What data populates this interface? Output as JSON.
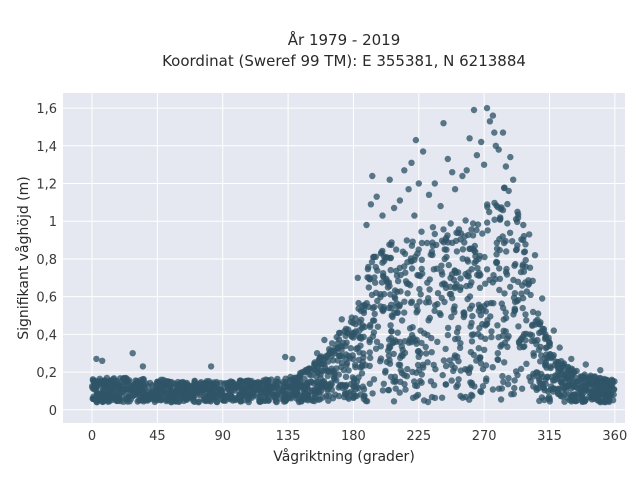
{
  "chart_data": {
    "type": "scatter",
    "title_line1": "År 1979 - 2019",
    "title_line2": "Koordinat (Sweref 99 TM): E 355381, N 6213884",
    "xlabel": "Vågriktning (grader)",
    "ylabel": "Signifikant våghöjd (m)",
    "xlim": [
      -20,
      367
    ],
    "ylim": [
      -0.07,
      1.68
    ],
    "x_ticks": [
      0,
      45,
      90,
      135,
      180,
      225,
      270,
      315,
      360
    ],
    "x_tick_labels": [
      "0",
      "45",
      "90",
      "135",
      "180",
      "225",
      "270",
      "315",
      "360"
    ],
    "y_ticks": [
      0,
      0.2,
      0.4,
      0.6,
      0.8,
      1.0,
      1.2,
      1.4,
      1.6
    ],
    "y_tick_labels": [
      "0",
      "0,2",
      "0,4",
      "0,6",
      "0,8",
      "1",
      "1,2",
      "1,4",
      "1,6"
    ],
    "grid": true,
    "marker_color": "#2f5468",
    "plot_background": "#e5e8f0",
    "envelope_x": [
      0,
      20,
      45,
      90,
      135,
      150,
      160,
      170,
      180,
      185,
      190,
      195,
      200,
      210,
      220,
      225,
      240,
      255,
      260,
      270,
      275,
      280,
      290,
      295,
      300,
      305,
      310,
      315,
      320,
      330,
      340,
      350,
      360
    ],
    "envelope_y": [
      0.17,
      0.17,
      0.16,
      0.15,
      0.17,
      0.23,
      0.3,
      0.42,
      0.5,
      0.6,
      0.78,
      0.85,
      0.88,
      0.9,
      0.92,
      0.95,
      0.98,
      1.0,
      1.02,
      1.1,
      1.15,
      1.2,
      1.15,
      1.02,
      0.85,
      0.65,
      0.48,
      0.37,
      0.28,
      0.22,
      0.19,
      0.17,
      0.16
    ],
    "outliers": [
      {
        "x": 3,
        "y": 0.27
      },
      {
        "x": 7,
        "y": 0.26
      },
      {
        "x": 28,
        "y": 0.3
      },
      {
        "x": 35,
        "y": 0.23
      },
      {
        "x": 82,
        "y": 0.23
      },
      {
        "x": 133,
        "y": 0.28
      },
      {
        "x": 138,
        "y": 0.27
      },
      {
        "x": 155,
        "y": 0.3
      },
      {
        "x": 160,
        "y": 0.37
      },
      {
        "x": 172,
        "y": 0.48
      },
      {
        "x": 183,
        "y": 0.7
      },
      {
        "x": 189,
        "y": 0.98
      },
      {
        "x": 192,
        "y": 1.09
      },
      {
        "x": 193,
        "y": 1.24
      },
      {
        "x": 196,
        "y": 1.13
      },
      {
        "x": 200,
        "y": 1.03
      },
      {
        "x": 205,
        "y": 1.22
      },
      {
        "x": 208,
        "y": 1.07
      },
      {
        "x": 212,
        "y": 1.11
      },
      {
        "x": 215,
        "y": 1.27
      },
      {
        "x": 218,
        "y": 1.17
      },
      {
        "x": 220,
        "y": 1.31
      },
      {
        "x": 222,
        "y": 1.03
      },
      {
        "x": 223,
        "y": 1.43
      },
      {
        "x": 225,
        "y": 1.2
      },
      {
        "x": 228,
        "y": 1.37
      },
      {
        "x": 232,
        "y": 1.14
      },
      {
        "x": 236,
        "y": 1.2
      },
      {
        "x": 240,
        "y": 1.08
      },
      {
        "x": 242,
        "y": 1.52
      },
      {
        "x": 245,
        "y": 1.33
      },
      {
        "x": 248,
        "y": 1.26
      },
      {
        "x": 250,
        "y": 1.17
      },
      {
        "x": 255,
        "y": 1.24
      },
      {
        "x": 258,
        "y": 1.27
      },
      {
        "x": 260,
        "y": 1.44
      },
      {
        "x": 263,
        "y": 1.59
      },
      {
        "x": 265,
        "y": 1.35
      },
      {
        "x": 268,
        "y": 1.42
      },
      {
        "x": 270,
        "y": 1.3
      },
      {
        "x": 272,
        "y": 1.6
      },
      {
        "x": 274,
        "y": 1.53
      },
      {
        "x": 276,
        "y": 1.56
      },
      {
        "x": 277,
        "y": 1.47
      },
      {
        "x": 278,
        "y": 1.4
      },
      {
        "x": 280,
        "y": 1.38
      },
      {
        "x": 283,
        "y": 1.47
      },
      {
        "x": 285,
        "y": 1.29
      },
      {
        "x": 288,
        "y": 1.34
      },
      {
        "x": 290,
        "y": 1.22
      },
      {
        "x": 293,
        "y": 1.05
      },
      {
        "x": 297,
        "y": 0.98
      },
      {
        "x": 301,
        "y": 0.93
      },
      {
        "x": 305,
        "y": 0.82
      },
      {
        "x": 310,
        "y": 0.59
      },
      {
        "x": 318,
        "y": 0.42
      },
      {
        "x": 322,
        "y": 0.33
      },
      {
        "x": 330,
        "y": 0.27
      },
      {
        "x": 340,
        "y": 0.24
      },
      {
        "x": 350,
        "y": 0.21
      }
    ]
  }
}
